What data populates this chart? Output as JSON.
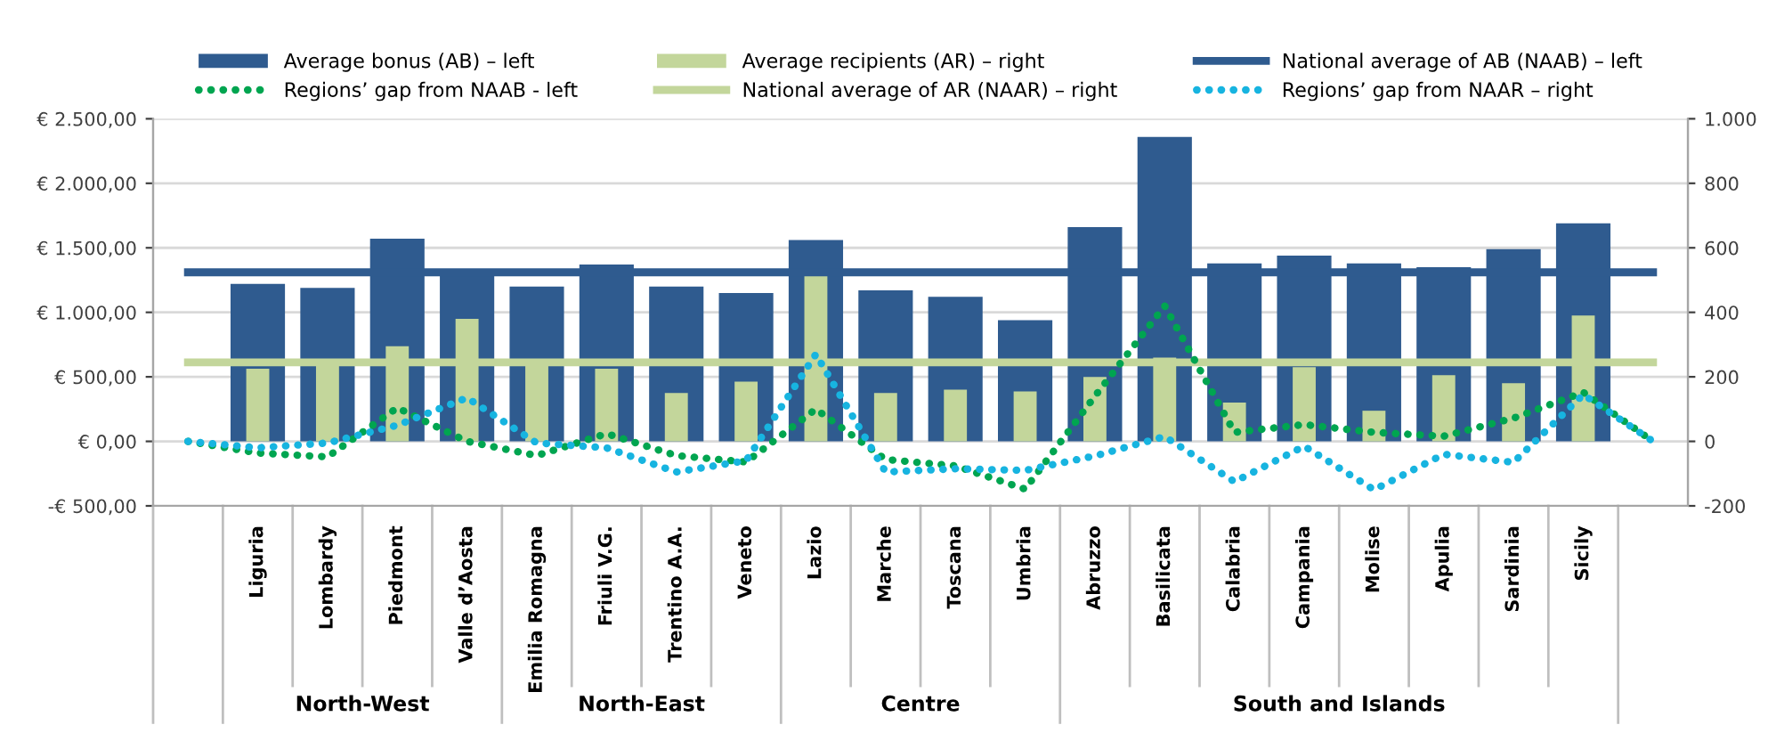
{
  "chart_data": {
    "type": "bar",
    "categories": [
      null,
      "Liguria",
      "Lombardy",
      "Piedmont",
      "Valle d’Aosta",
      "Emilia Romagna",
      "Friuli V.G.",
      "Trentino A.A.",
      "Veneto",
      "Lazio",
      "Marche",
      "Toscana",
      "Umbria",
      "Abruzzo",
      "Basilicata",
      "Calabria",
      "Campania",
      "Molise",
      "Apulia",
      "Sardinia",
      "Sicily",
      null
    ],
    "series": [
      {
        "name": "Average bonus (AB) – left",
        "color": "#2f5b8f",
        "values": [
          null,
          1220,
          1190,
          1570,
          1310,
          1200,
          1370,
          1200,
          1150,
          1560,
          1170,
          1120,
          940,
          1660,
          2360,
          1380,
          1440,
          1380,
          1350,
          1490,
          1690,
          null
        ]
      },
      {
        "name": "Average recipients (AR) – right",
        "axis": "y2",
        "color": "#c3d69b",
        "values": [
          null,
          225,
          240,
          295,
          380,
          240,
          225,
          150,
          185,
          515,
          150,
          160,
          155,
          200,
          260,
          120,
          230,
          95,
          205,
          180,
          390,
          null
        ]
      },
      {
        "name": "National average of AB (NAAB) – left",
        "type": "line",
        "line_style": "solid",
        "color": "#2f5b8f",
        "values": [
          1310,
          1310,
          1310,
          1310,
          1310,
          1310,
          1310,
          1310,
          1310,
          1310,
          1310,
          1310,
          1310,
          1310,
          1310,
          1310,
          1310,
          1310,
          1310,
          1310,
          1310,
          1310
        ]
      },
      {
        "name": "Regions’ gap from NAAB - left",
        "type": "line",
        "line_style": "dotted",
        "color": "#00a550",
        "values": [
          0,
          -90,
          -120,
          260,
          0,
          -110,
          60,
          -110,
          -160,
          250,
          -140,
          -190,
          -370,
          350,
          1050,
          70,
          130,
          70,
          40,
          180,
          380,
          0
        ]
      },
      {
        "name": "National average of AR (NAAR) – right",
        "type": "line",
        "line_style": "solid",
        "axis": "y2",
        "color": "#c3d69b",
        "values": [
          245,
          245,
          245,
          245,
          245,
          245,
          245,
          245,
          245,
          245,
          245,
          245,
          245,
          245,
          245,
          245,
          245,
          245,
          245,
          245,
          245,
          245
        ]
      },
      {
        "name": "Regions’ gap from NAAR – right",
        "type": "line",
        "line_style": "dotted",
        "axis": "y2",
        "color": "#17b4e0",
        "values": [
          0,
          -20,
          -5,
          50,
          135,
          -5,
          -20,
          -95,
          -60,
          270,
          -95,
          -85,
          -90,
          -45,
          15,
          -125,
          -15,
          -150,
          -40,
          -65,
          145,
          0
        ]
      }
    ],
    "ylim": [
      -500,
      2500
    ],
    "yticks": [
      {
        "value": -500,
        "label": "-€ 500,00"
      },
      {
        "value": 0,
        "label": "€ 0,00"
      },
      {
        "value": 500,
        "label": "€ 500,00"
      },
      {
        "value": 1000,
        "label": "€ 1.000,00"
      },
      {
        "value": 1500,
        "label": "€ 1.500,00"
      },
      {
        "value": 2000,
        "label": "€ 2.000,00"
      },
      {
        "value": 2500,
        "label": "€ 2.500,00"
      }
    ],
    "y2lim": [
      -200,
      1000
    ],
    "y2ticks": [
      -200,
      0,
      200,
      400,
      600,
      800,
      {
        "value": 1000,
        "label": "1.000"
      }
    ],
    "grid": "y",
    "legend": "top",
    "annotations": [
      "North-West",
      "North-East",
      "Centre",
      "South and Islands"
    ]
  }
}
